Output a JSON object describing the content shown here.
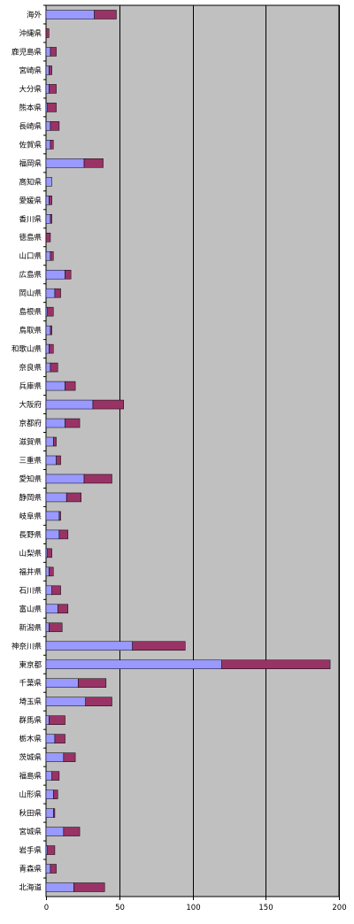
{
  "chart_data": {
    "type": "bar",
    "orientation": "horizontal",
    "stacked": true,
    "categories": [
      "海外",
      "沖縄県",
      "鹿児島県",
      "宮崎県",
      "大分県",
      "熊本県",
      "長崎県",
      "佐賀県",
      "福岡県",
      "高知県",
      "愛媛県",
      "香川県",
      "徳島県",
      "山口県",
      "広島県",
      "岡山県",
      "島根県",
      "鳥取県",
      "和歌山県",
      "奈良県",
      "兵庫県",
      "大阪府",
      "京都府",
      "滋賀県",
      "三重県",
      "愛知県",
      "静岡県",
      "岐阜県",
      "長野県",
      "山梨県",
      "福井県",
      "石川県",
      "富山県",
      "新潟県",
      "神奈川県",
      "東京都",
      "千葉県",
      "埼玉県",
      "群馬県",
      "栃木県",
      "茨城県",
      "福島県",
      "山形県",
      "秋田県",
      "宮城県",
      "岩手県",
      "青森県",
      "北海道"
    ],
    "series": [
      {
        "color": "#9999ff",
        "values": [
          33,
          0,
          3,
          2,
          2,
          1,
          3,
          3,
          26,
          4,
          2,
          3,
          0,
          3,
          13,
          6,
          1,
          3,
          2,
          3,
          13,
          32,
          13,
          5,
          7,
          26,
          14,
          9,
          9,
          1,
          2,
          4,
          8,
          2,
          59,
          120,
          22,
          27,
          2,
          6,
          12,
          4,
          5,
          5,
          12,
          1,
          3,
          19
        ]
      },
      {
        "color": "#993366",
        "values": [
          15,
          2,
          4,
          2,
          5,
          6,
          6,
          2,
          13,
          0,
          2,
          1,
          3,
          2,
          4,
          4,
          4,
          1,
          3,
          5,
          7,
          21,
          10,
          2,
          3,
          19,
          10,
          1,
          6,
          3,
          3,
          6,
          7,
          9,
          36,
          74,
          19,
          18,
          11,
          7,
          8,
          5,
          3,
          1,
          11,
          5,
          4,
          21
        ]
      }
    ],
    "xlim": [
      0,
      200
    ],
    "xticks": [
      0,
      50,
      100,
      150,
      200
    ],
    "grid": true,
    "background_color": "#c0c0c0",
    "gridline_color": "#000000"
  }
}
